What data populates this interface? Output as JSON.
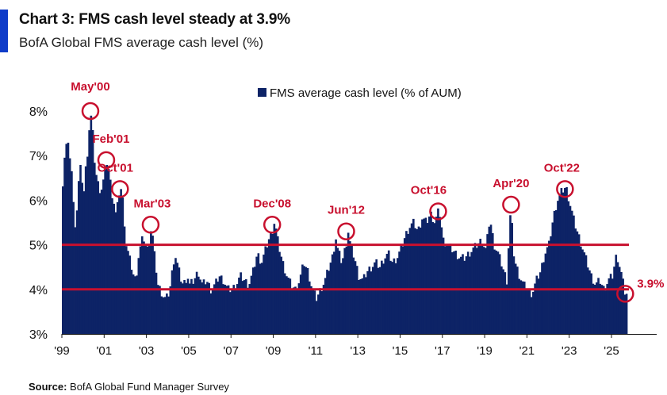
{
  "header": {
    "title": "Chart 3: FMS cash level steady at 3.9%",
    "subtitle": "BofA Global FMS average cash level (%)"
  },
  "footer": {
    "source_label": "Source:",
    "source_text": "BofA Global Fund Manager Survey"
  },
  "colors": {
    "bar": "#0d2366",
    "reference_line": "#c8102e",
    "annotation": "#c8102e",
    "accent": "#0f3cc9"
  },
  "chart_data": {
    "type": "bar",
    "legend": {
      "label": "FMS average cash level (% of AUM)",
      "position": "top-center"
    },
    "ylim": [
      3,
      8.5
    ],
    "xlim": [
      1999.0,
      2026.75
    ],
    "yticks": [
      {
        "value": 3,
        "label": "3%"
      },
      {
        "value": 4,
        "label": "4%"
      },
      {
        "value": 5,
        "label": "5%"
      },
      {
        "value": 6,
        "label": "6%"
      },
      {
        "value": 7,
        "label": "7%"
      },
      {
        "value": 8,
        "label": "8%"
      }
    ],
    "xticks": [
      {
        "value": 1999,
        "label": "'99"
      },
      {
        "value": 2001,
        "label": "'01"
      },
      {
        "value": 2003,
        "label": "'03"
      },
      {
        "value": 2005,
        "label": "'05"
      },
      {
        "value": 2007,
        "label": "'07"
      },
      {
        "value": 2009,
        "label": "'09"
      },
      {
        "value": 2011,
        "label": "'11"
      },
      {
        "value": 2013,
        "label": "'13"
      },
      {
        "value": 2015,
        "label": "'15"
      },
      {
        "value": 2017,
        "label": "'17"
      },
      {
        "value": 2019,
        "label": "'19"
      },
      {
        "value": 2021,
        "label": "'21"
      },
      {
        "value": 2023,
        "label": "'23"
      },
      {
        "value": 2025,
        "label": "'25"
      }
    ],
    "reference_lines": [
      5.0,
      4.0
    ],
    "series_points": [
      [
        1999.0,
        6.4
      ],
      [
        1999.1,
        7.1
      ],
      [
        1999.2,
        7.3
      ],
      [
        1999.3,
        7.1
      ],
      [
        1999.4,
        6.8
      ],
      [
        1999.5,
        5.9
      ],
      [
        1999.6,
        5.4
      ],
      [
        1999.7,
        6.0
      ],
      [
        1999.8,
        6.8
      ],
      [
        1999.9,
        6.5
      ],
      [
        2000.0,
        6.2
      ],
      [
        2000.1,
        6.8
      ],
      [
        2000.2,
        7.2
      ],
      [
        2000.3,
        8.0
      ],
      [
        2000.4,
        7.6
      ],
      [
        2000.5,
        6.9
      ],
      [
        2000.6,
        6.5
      ],
      [
        2000.7,
        6.3
      ],
      [
        2000.8,
        6.2
      ],
      [
        2000.9,
        6.4
      ],
      [
        2001.0,
        6.6
      ],
      [
        2001.1,
        6.9
      ],
      [
        2001.2,
        6.6
      ],
      [
        2001.3,
        6.2
      ],
      [
        2001.4,
        6.0
      ],
      [
        2001.5,
        5.7
      ],
      [
        2001.6,
        5.9
      ],
      [
        2001.7,
        6.3
      ],
      [
        2001.8,
        6.2
      ],
      [
        2001.9,
        5.6
      ],
      [
        2002.0,
        5.0
      ],
      [
        2002.1,
        4.8
      ],
      [
        2002.2,
        4.6
      ],
      [
        2002.3,
        4.4
      ],
      [
        2002.4,
        4.2
      ],
      [
        2002.5,
        4.4
      ],
      [
        2002.6,
        4.8
      ],
      [
        2002.7,
        5.0
      ],
      [
        2002.8,
        5.2
      ],
      [
        2002.9,
        5.0
      ],
      [
        2003.0,
        4.9
      ],
      [
        2003.1,
        5.1
      ],
      [
        2003.2,
        5.45
      ],
      [
        2003.3,
        4.9
      ],
      [
        2003.4,
        4.5
      ],
      [
        2003.5,
        4.1
      ],
      [
        2003.6,
        4.0
      ],
      [
        2003.7,
        3.9
      ],
      [
        2003.8,
        3.8
      ],
      [
        2003.9,
        3.8
      ],
      [
        2004.0,
        3.9
      ],
      [
        2004.1,
        4.1
      ],
      [
        2004.2,
        4.5
      ],
      [
        2004.3,
        4.8
      ],
      [
        2004.4,
        4.6
      ],
      [
        2004.5,
        4.4
      ],
      [
        2004.6,
        4.2
      ],
      [
        2004.7,
        4.1
      ],
      [
        2004.8,
        4.2
      ],
      [
        2004.9,
        4.3
      ],
      [
        2005.0,
        4.1
      ],
      [
        2005.2,
        4.2
      ],
      [
        2005.4,
        4.4
      ],
      [
        2005.6,
        4.1
      ],
      [
        2005.8,
        4.2
      ],
      [
        2006.0,
        4.0
      ],
      [
        2006.2,
        4.1
      ],
      [
        2006.4,
        4.3
      ],
      [
        2006.6,
        4.2
      ],
      [
        2006.8,
        4.0
      ],
      [
        2007.0,
        4.0
      ],
      [
        2007.2,
        4.1
      ],
      [
        2007.4,
        4.3
      ],
      [
        2007.6,
        4.2
      ],
      [
        2007.8,
        4.1
      ],
      [
        2008.0,
        4.4
      ],
      [
        2008.2,
        4.8
      ],
      [
        2008.4,
        4.6
      ],
      [
        2008.6,
        4.9
      ],
      [
        2008.8,
        5.2
      ],
      [
        2008.9,
        5.3
      ],
      [
        2009.0,
        5.5
      ],
      [
        2009.1,
        5.3
      ],
      [
        2009.2,
        5.0
      ],
      [
        2009.4,
        4.6
      ],
      [
        2009.6,
        4.3
      ],
      [
        2009.8,
        4.1
      ],
      [
        2010.0,
        4.0
      ],
      [
        2010.2,
        4.2
      ],
      [
        2010.4,
        4.6
      ],
      [
        2010.6,
        4.4
      ],
      [
        2010.8,
        4.0
      ],
      [
        2011.0,
        3.8
      ],
      [
        2011.2,
        4.0
      ],
      [
        2011.4,
        4.2
      ],
      [
        2011.6,
        4.5
      ],
      [
        2011.8,
        4.8
      ],
      [
        2011.9,
        5.2
      ],
      [
        2012.0,
        4.9
      ],
      [
        2012.2,
        4.6
      ],
      [
        2012.4,
        5.0
      ],
      [
        2012.5,
        5.3
      ],
      [
        2012.6,
        5.0
      ],
      [
        2012.8,
        4.7
      ],
      [
        2013.0,
        4.3
      ],
      [
        2013.2,
        4.2
      ],
      [
        2013.4,
        4.4
      ],
      [
        2013.6,
        4.5
      ],
      [
        2013.8,
        4.6
      ],
      [
        2014.0,
        4.5
      ],
      [
        2014.2,
        4.7
      ],
      [
        2014.4,
        4.8
      ],
      [
        2014.6,
        4.6
      ],
      [
        2014.8,
        4.7
      ],
      [
        2015.0,
        4.9
      ],
      [
        2015.2,
        5.2
      ],
      [
        2015.4,
        5.4
      ],
      [
        2015.6,
        5.5
      ],
      [
        2015.8,
        5.3
      ],
      [
        2016.0,
        5.6
      ],
      [
        2016.2,
        5.5
      ],
      [
        2016.4,
        5.7
      ],
      [
        2016.6,
        5.5
      ],
      [
        2016.8,
        5.8
      ],
      [
        2017.0,
        5.1
      ],
      [
        2017.2,
        5.0
      ],
      [
        2017.4,
        4.9
      ],
      [
        2017.6,
        4.8
      ],
      [
        2017.8,
        4.7
      ],
      [
        2018.0,
        4.7
      ],
      [
        2018.2,
        4.8
      ],
      [
        2018.4,
        4.9
      ],
      [
        2018.6,
        5.0
      ],
      [
        2018.8,
        5.1
      ],
      [
        2019.0,
        4.9
      ],
      [
        2019.1,
        5.2
      ],
      [
        2019.2,
        5.6
      ],
      [
        2019.4,
        5.0
      ],
      [
        2019.6,
        4.8
      ],
      [
        2019.8,
        4.5
      ],
      [
        2020.0,
        4.2
      ],
      [
        2020.1,
        5.1
      ],
      [
        2020.2,
        5.9
      ],
      [
        2020.3,
        4.9
      ],
      [
        2020.4,
        4.6
      ],
      [
        2020.6,
        4.3
      ],
      [
        2020.8,
        4.1
      ],
      [
        2021.0,
        4.0
      ],
      [
        2021.2,
        3.9
      ],
      [
        2021.4,
        4.2
      ],
      [
        2021.6,
        4.4
      ],
      [
        2021.8,
        4.8
      ],
      [
        2022.0,
        5.0
      ],
      [
        2022.2,
        5.6
      ],
      [
        2022.4,
        6.0
      ],
      [
        2022.6,
        6.2
      ],
      [
        2022.8,
        6.3
      ],
      [
        2023.0,
        5.9
      ],
      [
        2023.2,
        5.5
      ],
      [
        2023.4,
        5.2
      ],
      [
        2023.6,
        4.9
      ],
      [
        2023.8,
        4.6
      ],
      [
        2024.0,
        4.3
      ],
      [
        2024.2,
        4.1
      ],
      [
        2024.4,
        4.2
      ],
      [
        2024.6,
        4.0
      ],
      [
        2024.8,
        4.2
      ],
      [
        2025.0,
        4.3
      ],
      [
        2025.2,
        4.8
      ],
      [
        2025.4,
        4.4
      ],
      [
        2025.6,
        3.9
      ],
      [
        2025.7,
        3.9
      ]
    ],
    "annotations": [
      {
        "label": "May'00",
        "x": 2000.35,
        "y": 8.0
      },
      {
        "label": "Feb'01",
        "x": 2001.1,
        "y": 6.9
      },
      {
        "label": "Oct'01",
        "x": 2001.75,
        "y": 6.25
      },
      {
        "label": "Mar'03",
        "x": 2003.2,
        "y": 5.45
      },
      {
        "label": "Dec'08",
        "x": 2008.95,
        "y": 5.45
      },
      {
        "label": "Jun'12",
        "x": 2012.45,
        "y": 5.3
      },
      {
        "label": "Oct'16",
        "x": 2016.8,
        "y": 5.75
      },
      {
        "label": "Apr'20",
        "x": 2020.25,
        "y": 5.9
      },
      {
        "label": "Oct'22",
        "x": 2022.8,
        "y": 6.25
      },
      {
        "label": "3.9%",
        "x": 2025.65,
        "y": 3.9
      }
    ]
  }
}
